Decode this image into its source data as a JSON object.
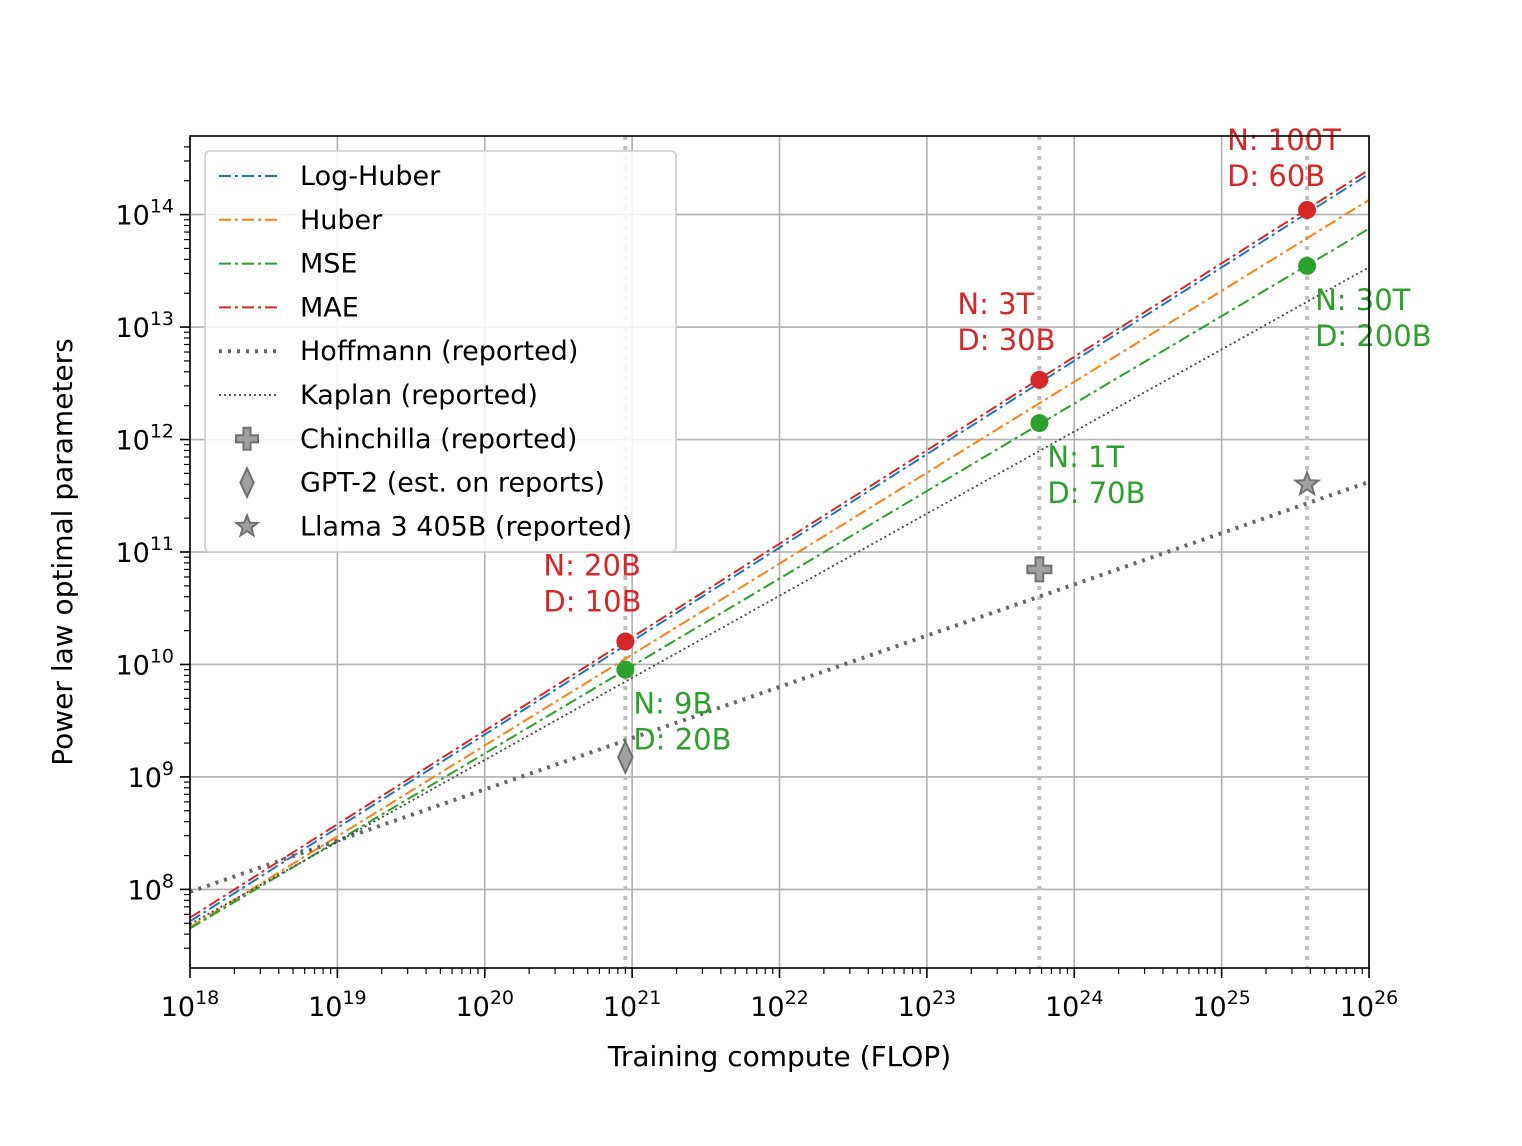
{
  "chart_data": {
    "type": "line",
    "xscale": "log",
    "yscale": "log",
    "xlabel": "Training compute (FLOP)",
    "ylabel": "Power law optimal parameters",
    "xlim": [
      1e+18,
      1e+26
    ],
    "ylim": [
      20000000.0,
      500000000000000.0
    ],
    "grid": true,
    "legend_position": "top-left",
    "x_ticks": [
      {
        "base": "10",
        "exp": "18"
      },
      {
        "base": "10",
        "exp": "19"
      },
      {
        "base": "10",
        "exp": "20"
      },
      {
        "base": "10",
        "exp": "21"
      },
      {
        "base": "10",
        "exp": "22"
      },
      {
        "base": "10",
        "exp": "23"
      },
      {
        "base": "10",
        "exp": "24"
      },
      {
        "base": "10",
        "exp": "25"
      },
      {
        "base": "10",
        "exp": "26"
      }
    ],
    "y_ticks": [
      {
        "base": "10",
        "exp": "8"
      },
      {
        "base": "10",
        "exp": "9"
      },
      {
        "base": "10",
        "exp": "10"
      },
      {
        "base": "10",
        "exp": "11"
      },
      {
        "base": "10",
        "exp": "12"
      },
      {
        "base": "10",
        "exp": "13"
      },
      {
        "base": "10",
        "exp": "14"
      }
    ],
    "series": [
      {
        "name": "Log-Huber",
        "color": "#1f77b4",
        "style": "dashdot",
        "x": [
          1e+18,
          1e+26
        ],
        "y": [
          52000000.0,
          230000000000000.0
        ]
      },
      {
        "name": "Huber",
        "color": "#ff7f0e",
        "style": "dashdot",
        "x": [
          1e+18,
          1e+26
        ],
        "y": [
          46000000.0,
          135000000000000.0
        ]
      },
      {
        "name": "MSE",
        "color": "#2ca02c",
        "style": "dashdot",
        "x": [
          1e+18,
          1e+26
        ],
        "y": [
          45000000.0,
          75000000000000.0
        ]
      },
      {
        "name": "MAE",
        "color": "#d62728",
        "style": "dashdot",
        "x": [
          1e+18,
          1e+26
        ],
        "y": [
          56000000.0,
          250000000000000.0
        ]
      },
      {
        "name": "Hoffmann (reported)",
        "color": "#666666",
        "style": "dotted-thick",
        "x": [
          1e+18,
          1e+26
        ],
        "y": [
          95000000.0,
          420000000000.0
        ]
      },
      {
        "name": "Kaplan (reported)",
        "color": "#444444",
        "style": "dotted-thin",
        "x": [
          1e+18,
          1e+26
        ],
        "y": [
          49000000.0,
          34000000000000.0
        ]
      }
    ],
    "markers": [
      {
        "name": "Chinchilla (reported)",
        "shape": "plus",
        "x": 5.8e+23,
        "y": 70000000000.0
      },
      {
        "name": "GPT-2 (est. on reports)",
        "shape": "diamond",
        "x": 9e+20,
        "y": 1500000000.0
      },
      {
        "name": "Llama 3 405B (reported)",
        "shape": "star",
        "x": 3.8e+25,
        "y": 400000000000.0
      }
    ],
    "vlines": [
      9e+20,
      5.8e+23,
      3.8e+25
    ],
    "highlight_points": [
      {
        "series": "MAE",
        "x": 9e+20,
        "y": 16000000000.0,
        "color": "#d62728"
      },
      {
        "series": "MAE",
        "x": 5.8e+23,
        "y": 3400000000000.0,
        "color": "#d62728"
      },
      {
        "series": "MAE",
        "x": 3.8e+25,
        "y": 110000000000000.0,
        "color": "#d62728"
      },
      {
        "series": "MSE",
        "x": 9e+20,
        "y": 9000000000.0,
        "color": "#2ca02c"
      },
      {
        "series": "MSE",
        "x": 5.8e+23,
        "y": 1400000000000.0,
        "color": "#2ca02c"
      },
      {
        "series": "MSE",
        "x": 3.8e+25,
        "y": 35000000000000.0,
        "color": "#2ca02c"
      }
    ],
    "annotations": [
      {
        "lines": [
          "N: 20B",
          "D: 10B"
        ],
        "color": "#d62728"
      },
      {
        "lines": [
          "N: 3T",
          "D: 30B"
        ],
        "color": "#d62728"
      },
      {
        "lines": [
          "N: 100T",
          "D: 60B"
        ],
        "color": "#d62728"
      },
      {
        "lines": [
          "N: 9B",
          "D: 20B"
        ],
        "color": "#2ca02c"
      },
      {
        "lines": [
          "N: 1T",
          "D: 70B"
        ],
        "color": "#2ca02c"
      },
      {
        "lines": [
          "N: 30T",
          "D: 200B"
        ],
        "color": "#2ca02c"
      }
    ]
  }
}
